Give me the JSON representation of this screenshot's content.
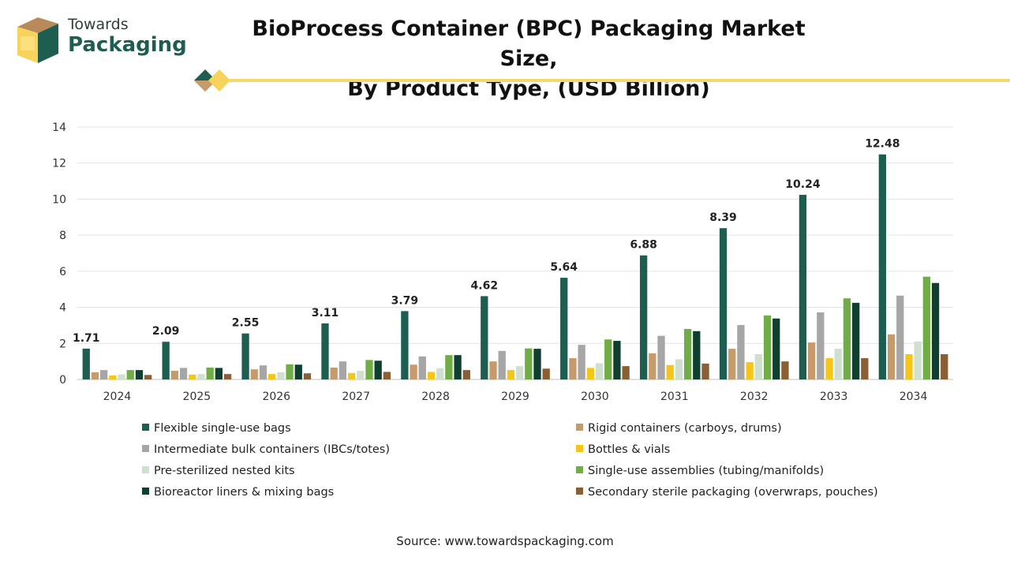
{
  "logo": {
    "line1": "Towards",
    "line2": "Packaging"
  },
  "title": {
    "line1": "BioProcess Container (BPC) Packaging Market Size,",
    "line2": "By Product Type, (USD Billion)"
  },
  "source": "Source: www.towardspackaging.com",
  "chart_data": {
    "type": "bar",
    "categories": [
      "2024",
      "2025",
      "2026",
      "2027",
      "2028",
      "2029",
      "2030",
      "2031",
      "2032",
      "2033",
      "2034"
    ],
    "ylim": [
      0,
      14
    ],
    "yticks": [
      0,
      2,
      4,
      6,
      8,
      10,
      12,
      14
    ],
    "grid": true,
    "legend_position": "bottom",
    "series": [
      {
        "name": "Flexible single-use bags",
        "color": "#1e5e50",
        "labeled": true,
        "values": [
          1.71,
          2.09,
          2.55,
          3.11,
          3.79,
          4.62,
          5.64,
          6.88,
          8.39,
          10.24,
          12.48
        ]
      },
      {
        "name": "Rigid containers (carboys, drums)",
        "color": "#c79a6b",
        "values": [
          0.4,
          0.48,
          0.56,
          0.66,
          0.82,
          1.0,
          1.18,
          1.45,
          1.7,
          2.05,
          2.5
        ]
      },
      {
        "name": "Intermediate bulk containers (IBCs/totes)",
        "color": "#a6a6a6",
        "values": [
          0.52,
          0.64,
          0.78,
          1.0,
          1.28,
          1.58,
          1.92,
          2.42,
          3.02,
          3.72,
          4.65
        ]
      },
      {
        "name": "Bottles & vials",
        "color": "#f5c518",
        "values": [
          0.22,
          0.27,
          0.3,
          0.36,
          0.42,
          0.52,
          0.64,
          0.8,
          0.96,
          1.18,
          1.4
        ]
      },
      {
        "name": "Pre-sterilized nested kits",
        "color": "#cfe0cf",
        "values": [
          0.28,
          0.3,
          0.4,
          0.48,
          0.62,
          0.74,
          0.9,
          1.12,
          1.4,
          1.7,
          2.1
        ]
      },
      {
        "name": "Single-use assemblies (tubing/manifolds)",
        "color": "#70ad47",
        "values": [
          0.52,
          0.66,
          0.84,
          1.08,
          1.35,
          1.72,
          2.22,
          2.8,
          3.55,
          4.5,
          5.7
        ]
      },
      {
        "name": "Bioreactor liners & mixing bags",
        "color": "#0f3f2e",
        "values": [
          0.52,
          0.64,
          0.82,
          1.04,
          1.35,
          1.7,
          2.14,
          2.68,
          3.38,
          4.25,
          5.35
        ]
      },
      {
        "name": "Secondary sterile packaging (overwraps, pouches)",
        "color": "#8b5e34",
        "values": [
          0.25,
          0.3,
          0.34,
          0.42,
          0.52,
          0.6,
          0.74,
          0.88,
          1.0,
          1.18,
          1.4
        ]
      }
    ]
  }
}
